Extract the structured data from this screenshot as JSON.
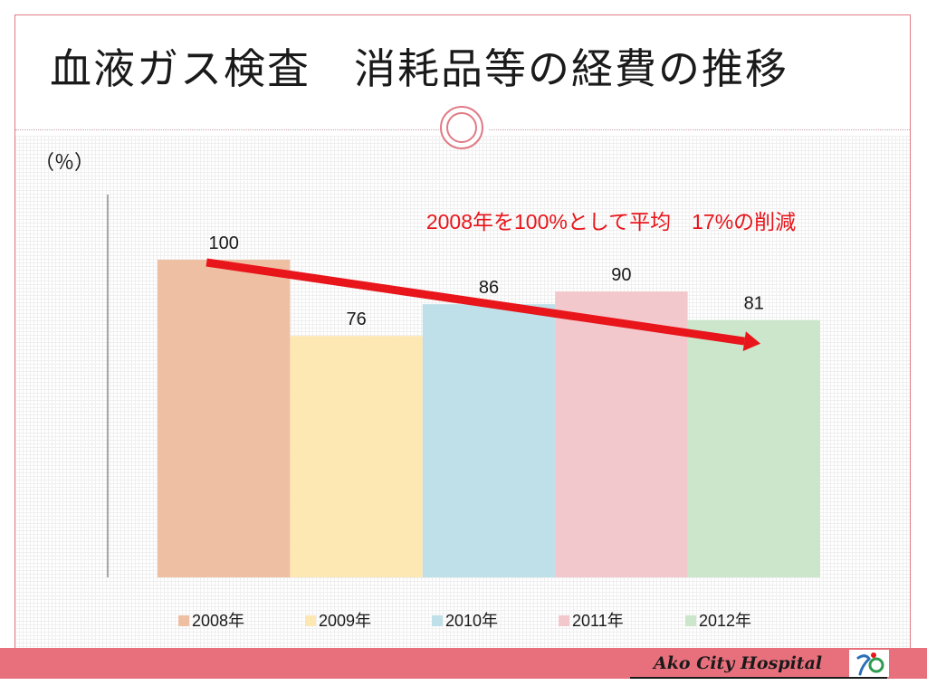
{
  "slide": {
    "title": "血液ガス検査　消耗品等の経費の推移",
    "unit_label": "（％）",
    "footer_brand": "Ako City Hospital"
  },
  "chart_data": {
    "type": "bar",
    "categories": [
      "2008年",
      "2009年",
      "2010年",
      "2011年",
      "2012年"
    ],
    "values": [
      100,
      76,
      86,
      90,
      81
    ],
    "colors": [
      "#efbfa3",
      "#fde7b3",
      "#bfe0e8",
      "#f3c8cd",
      "#cbe6cb"
    ],
    "ylim": [
      0,
      100
    ],
    "legend_position": "bottom",
    "grid": false,
    "annotation": "2008年を100%として平均　17%の削減",
    "annotation_color": "#e8151b",
    "trend_arrow_color": "#e8151b"
  }
}
